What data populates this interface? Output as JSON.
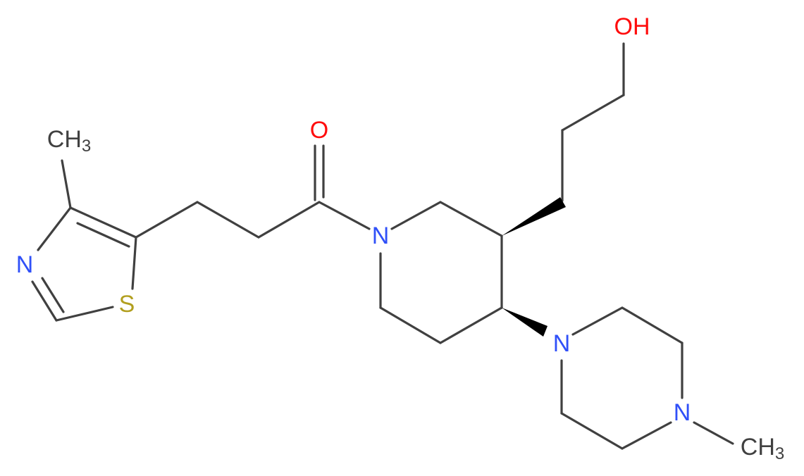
{
  "labels": [
    {
      "main": "OH"
    },
    {
      "main": "O"
    },
    {
      "main": "N"
    },
    {
      "main": "N"
    },
    {
      "main": "N"
    },
    {
      "main": "N"
    },
    {
      "main": "S"
    },
    {
      "main": "CH",
      "sub": "3"
    },
    {
      "main": "CH",
      "sub": "3"
    }
  ]
}
